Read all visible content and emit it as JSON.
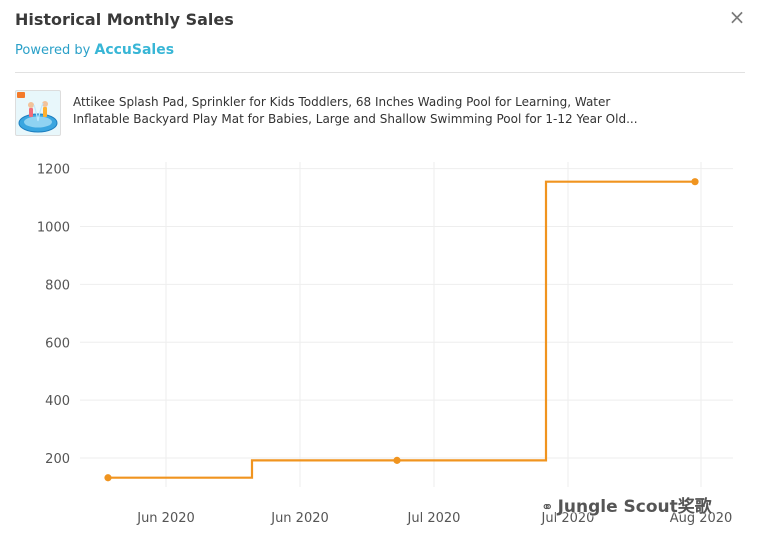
{
  "header": {
    "title": "Historical Monthly Sales",
    "powered_prefix": "Powered by",
    "powered_brand": "AccuSales",
    "close_glyph": "×"
  },
  "product": {
    "title_line1": "Attikee Splash Pad, Sprinkler for Kids Toddlers, 68 Inches Wading Pool for Learning, Water",
    "title_line2": "Inflatable Backyard Play Mat for Babies, Large and Shallow Swimming Pool for 1-12 Year Old..."
  },
  "watermark": {
    "text": "Jungle Scout奖歌"
  },
  "chart_data": {
    "type": "line",
    "line_shape": "step",
    "title": "",
    "xlabel": "",
    "ylabel": "",
    "ylim": [
      100,
      1230
    ],
    "y_ticks": [
      200,
      400,
      600,
      800,
      1000,
      1200
    ],
    "x_ticks": [
      "Jun 2020",
      "Jun 2020",
      "Jul 2020",
      "Jul 2020",
      "Aug 2020"
    ],
    "grid": true,
    "color": "#f0941f",
    "points": [
      {
        "x": "May 2020",
        "y": 132,
        "marker": true
      },
      {
        "x": "Jun 2020",
        "y": 132,
        "marker": false
      },
      {
        "x": "Jun 2020",
        "y": 192,
        "marker": false
      },
      {
        "x": "Jul 2020",
        "y": 192,
        "marker": true
      },
      {
        "x": "Jul 2020",
        "y": 192,
        "marker": false
      },
      {
        "x": "Jul 2020",
        "y": 1155,
        "marker": false
      },
      {
        "x": "Aug 2020",
        "y": 1155,
        "marker": true
      }
    ]
  }
}
